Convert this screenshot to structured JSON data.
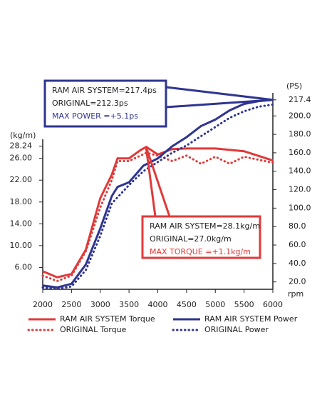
{
  "chart_data": {
    "type": "line",
    "xlim": [
      2000,
      6000
    ],
    "xticks": [
      2000,
      2500,
      3000,
      3500,
      4000,
      4500,
      5000,
      5500,
      6000
    ],
    "ylim": [
      2,
      38
    ],
    "yticks": [
      {
        "value": 6,
        "label": "6.00"
      },
      {
        "value": 10,
        "label": "10.00"
      },
      {
        "value": 14,
        "label": "14.00"
      },
      {
        "value": 18,
        "label": "18.00"
      },
      {
        "value": 22,
        "label": "22.00"
      },
      {
        "value": 26,
        "label": "26.00"
      },
      28.24
    ],
    "y2lim": [
      12,
      225
    ],
    "y2ticks": [
      {
        "value": 20,
        "label": "20.0"
      },
      {
        "value": 40,
        "label": "40.0"
      },
      {
        "value": 60,
        "label": "60.0"
      },
      {
        "value": 80,
        "label": "80.0"
      },
      {
        "value": 100,
        "label": "100.0"
      },
      {
        "value": 120,
        "label": "120.0"
      },
      {
        "value": 140,
        "label": "140.0"
      },
      {
        "value": 160,
        "label": "160.0"
      },
      {
        "value": 180,
        "label": "180.0"
      },
      {
        "value": 200,
        "label": "200.0"
      },
      217.4
    ],
    "ylabel": "(kg/m)",
    "y2label": "(PS)",
    "xlabel": "rpm",
    "series": [
      {
        "name": "RAM AIR SYSTEM Torque",
        "color": "#e03a3a",
        "style": "solid",
        "x": [
          2000,
          2250,
          2500,
          2750,
          3000,
          3200,
          3300,
          3500,
          3700,
          3800,
          4000,
          4250,
          4500,
          5000,
          5500,
          6000
        ],
        "values": [
          5.3,
          4.2,
          4.8,
          9.3,
          18.7,
          23,
          26,
          26,
          27.5,
          28.1,
          26.7,
          27.7,
          27.8,
          27.8,
          27.3,
          25.6
        ]
      },
      {
        "name": "ORIGINAL Torque",
        "color": "#e03a3a",
        "style": "dotted",
        "x": [
          2000,
          2250,
          2500,
          2750,
          3000,
          3200,
          3300,
          3500,
          3800,
          4000,
          4250,
          4500,
          4750,
          5000,
          5250,
          5500,
          6000
        ],
        "values": [
          4.5,
          3.5,
          4.5,
          9,
          17,
          22,
          25.5,
          25.5,
          27,
          26.5,
          25.5,
          26.5,
          25,
          26.3,
          25,
          26.3,
          25.2
        ]
      },
      {
        "name": "RAM AIR SYSTEM Power",
        "color": "#2f3590",
        "style": "solid",
        "axis": "y2",
        "x": [
          2000,
          2250,
          2500,
          2750,
          3000,
          3200,
          3300,
          3500,
          3750,
          4000,
          4250,
          4500,
          4750,
          5000,
          5250,
          5500,
          5750,
          6000
        ],
        "values": [
          16,
          14,
          18,
          39,
          78,
          113,
          123,
          128,
          146,
          154,
          167,
          177,
          189,
          196,
          206,
          213,
          216,
          217.4
        ]
      },
      {
        "name": "ORIGINAL Power",
        "color": "#2f3590",
        "style": "dotted",
        "axis": "y2",
        "x": [
          2000,
          2250,
          2500,
          2750,
          3000,
          3200,
          3500,
          3750,
          4000,
          4250,
          4500,
          4750,
          5000,
          5250,
          5500,
          5750,
          6000
        ],
        "values": [
          14,
          12.5,
          15,
          33,
          70,
          105,
          125,
          140,
          150,
          160,
          168,
          178,
          188,
          198,
          205,
          210,
          212.3
        ]
      }
    ],
    "annotations": [
      {
        "color": "#2f3590",
        "lines": [
          "RAM AIR SYSTEM=217.4ps",
          "ORIGINAL=212.3ps",
          "MAX POWER  =+5.1ps"
        ]
      },
      {
        "color": "#e03a3a",
        "lines": [
          "RAM AIR SYSTEM=28.1kg/m",
          "ORIGINAL=27.0kg/m",
          "MAX TORQUE =+1.1kg/m"
        ]
      }
    ]
  }
}
